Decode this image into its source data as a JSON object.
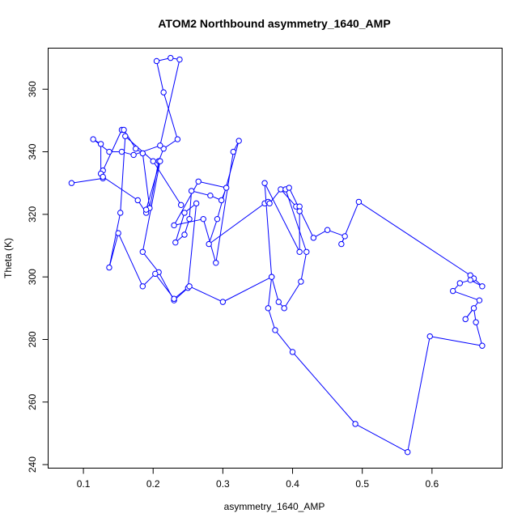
{
  "chart_data": {
    "type": "line",
    "title": "ATOM2 Northbound asymmetry_1640_AMP",
    "xlabel": "asymmetry_1640_AMP",
    "ylabel": "Theta (K)",
    "xlim": [
      0.05,
      0.7
    ],
    "ylim": [
      239,
      373
    ],
    "x_ticks": [
      0.1,
      0.2,
      0.3,
      0.4,
      0.5,
      0.6
    ],
    "y_ticks": [
      240,
      260,
      280,
      300,
      320,
      340,
      360
    ],
    "grid": false,
    "legend": "none",
    "marker": "open-circle",
    "color": "#0000ff",
    "series": [
      {
        "x": [
          0.083,
          0.128,
          0.128,
          0.155,
          0.158,
          0.175,
          0.185,
          0.195,
          0.208,
          0.215,
          0.235,
          0.215,
          0.205,
          0.225,
          0.238,
          0.21,
          0.172,
          0.155,
          0.137,
          0.114,
          0.125,
          0.125,
          0.128,
          0.178,
          0.19,
          0.19,
          0.21,
          0.185,
          0.208,
          0.23,
          0.25,
          0.262,
          0.245,
          0.232,
          0.245,
          0.252,
          0.255,
          0.282,
          0.298,
          0.305,
          0.265,
          0.23,
          0.272,
          0.29,
          0.315,
          0.323,
          0.292,
          0.28,
          0.36,
          0.365,
          0.367,
          0.383,
          0.405,
          0.41,
          0.41,
          0.41,
          0.36,
          0.37,
          0.38,
          0.388,
          0.412,
          0.42,
          0.39,
          0.395,
          0.43,
          0.45,
          0.475,
          0.47,
          0.495,
          0.655,
          0.66,
          0.672,
          0.655,
          0.64,
          0.63,
          0.668,
          0.648,
          0.66,
          0.663,
          0.672,
          0.597,
          0.565,
          0.49,
          0.4,
          0.375,
          0.365,
          0.37,
          0.3,
          0.252,
          0.23,
          0.203,
          0.185,
          0.15,
          0.137,
          0.153,
          0.16,
          0.2,
          0.24
        ],
        "y": [
          330,
          331.5,
          334,
          347,
          347,
          341,
          339.5,
          322,
          337,
          341,
          344,
          359,
          369,
          370,
          369.5,
          342,
          339,
          340,
          340,
          344,
          342.5,
          333,
          332,
          324.5,
          320.5,
          321.5,
          337,
          308,
          301.5,
          292.5,
          296.5,
          323.5,
          320.5,
          311,
          313.5,
          318.5,
          327.5,
          326,
          324.5,
          328.5,
          330.5,
          316.5,
          318.5,
          304.5,
          340,
          343.5,
          318.5,
          310.5,
          323.5,
          324,
          323.5,
          328,
          322.5,
          322.5,
          321,
          308,
          330,
          300,
          292,
          290,
          298.5,
          308,
          328,
          328.5,
          312.5,
          315,
          313,
          310.5,
          324,
          300.5,
          299.5,
          297,
          299,
          298,
          295.5,
          292.5,
          286.5,
          290,
          285.5,
          278,
          281,
          244,
          253,
          276,
          283,
          290,
          300,
          292,
          297,
          293,
          301,
          297,
          314,
          303,
          320.5,
          345,
          337,
          323
        ]
      }
    ]
  }
}
